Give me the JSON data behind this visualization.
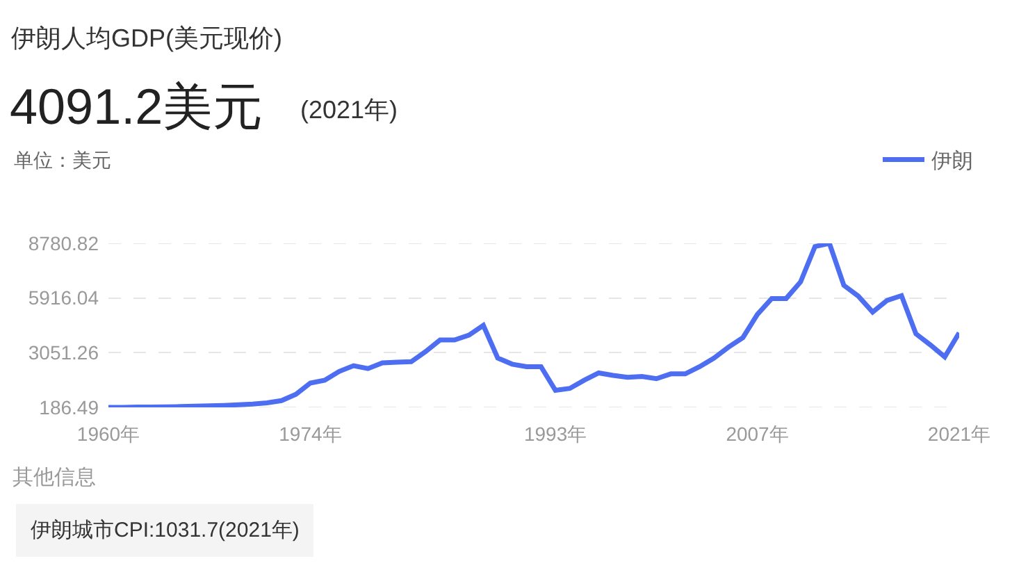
{
  "chart_data": {
    "type": "line",
    "title": "伊朗人均GDP(美元现价)",
    "subtitle": "4091.2美元",
    "ylabel": "单位：美元",
    "annotations": [
      "(2021年)",
      "其他信息",
      "伊朗城市CPI:1031.7(2021年)"
    ],
    "categories": [
      "1960年",
      null,
      null,
      null,
      null,
      null,
      null,
      null,
      null,
      null,
      null,
      null,
      null,
      null,
      "1974年",
      null,
      null,
      null,
      null,
      null,
      null,
      null,
      null,
      null,
      null,
      null,
      null,
      null,
      null,
      null,
      null,
      "1993年",
      null,
      null,
      null,
      null,
      null,
      null,
      null,
      null,
      null,
      null,
      null,
      null,
      null,
      "2007年",
      null,
      null,
      null,
      null,
      null,
      null,
      null,
      null,
      null,
      null,
      null,
      null,
      null,
      "2021年"
    ],
    "series": [
      {
        "name": "伊朗",
        "color": "#4e6ef2",
        "values": [
          186.49,
          190,
          200,
          200,
          210,
          230,
          250,
          270,
          290,
          320,
          360,
          420,
          540,
          870,
          1460,
          1610,
          2070,
          2370,
          2220,
          2520,
          2550,
          2580,
          3110,
          3720,
          3720,
          3970,
          4480,
          2770,
          2450,
          2320,
          2320,
          1080,
          1180,
          1610,
          1990,
          1860,
          1760,
          1810,
          1690,
          1940,
          1940,
          2320,
          2770,
          3340,
          3840,
          5050,
          5890,
          5890,
          6760,
          8610,
          8780.82,
          6580,
          6020,
          5180,
          5790,
          6040,
          4040,
          3460,
          2830,
          4091.2
        ]
      }
    ],
    "ylim": [
      186.49,
      8780.82
    ],
    "yticks": [
      186.49,
      3051.26,
      5916.04,
      8780.82
    ],
    "grid": "y",
    "legend": "top right"
  }
}
